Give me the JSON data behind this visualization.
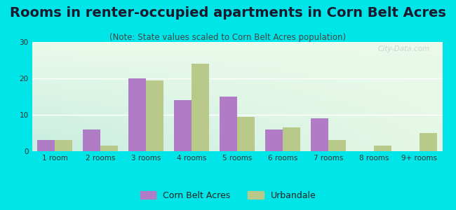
{
  "title": "Rooms in renter-occupied apartments in Corn Belt Acres",
  "subtitle": "(Note: State values scaled to Corn Belt Acres population)",
  "categories": [
    "1 room",
    "2 rooms",
    "3 rooms",
    "4 rooms",
    "5 rooms",
    "6 rooms",
    "7 rooms",
    "8 rooms",
    "9+ rooms"
  ],
  "corn_belt_values": [
    3.0,
    6.0,
    20.0,
    14.0,
    15.0,
    6.0,
    9.0,
    0.0,
    0.0
  ],
  "urbandale_values": [
    3.0,
    1.5,
    19.5,
    24.0,
    9.5,
    6.5,
    3.0,
    1.5,
    5.0
  ],
  "corn_belt_color": "#b07cc6",
  "urbandale_color": "#b8c98a",
  "background_outer": "#00e5e8",
  "ylim": [
    0,
    30
  ],
  "yticks": [
    0,
    10,
    20,
    30
  ],
  "bar_width": 0.38,
  "title_fontsize": 14,
  "subtitle_fontsize": 8.5,
  "legend_fontsize": 9,
  "tick_fontsize": 7.5,
  "watermark": "City-Data.com"
}
